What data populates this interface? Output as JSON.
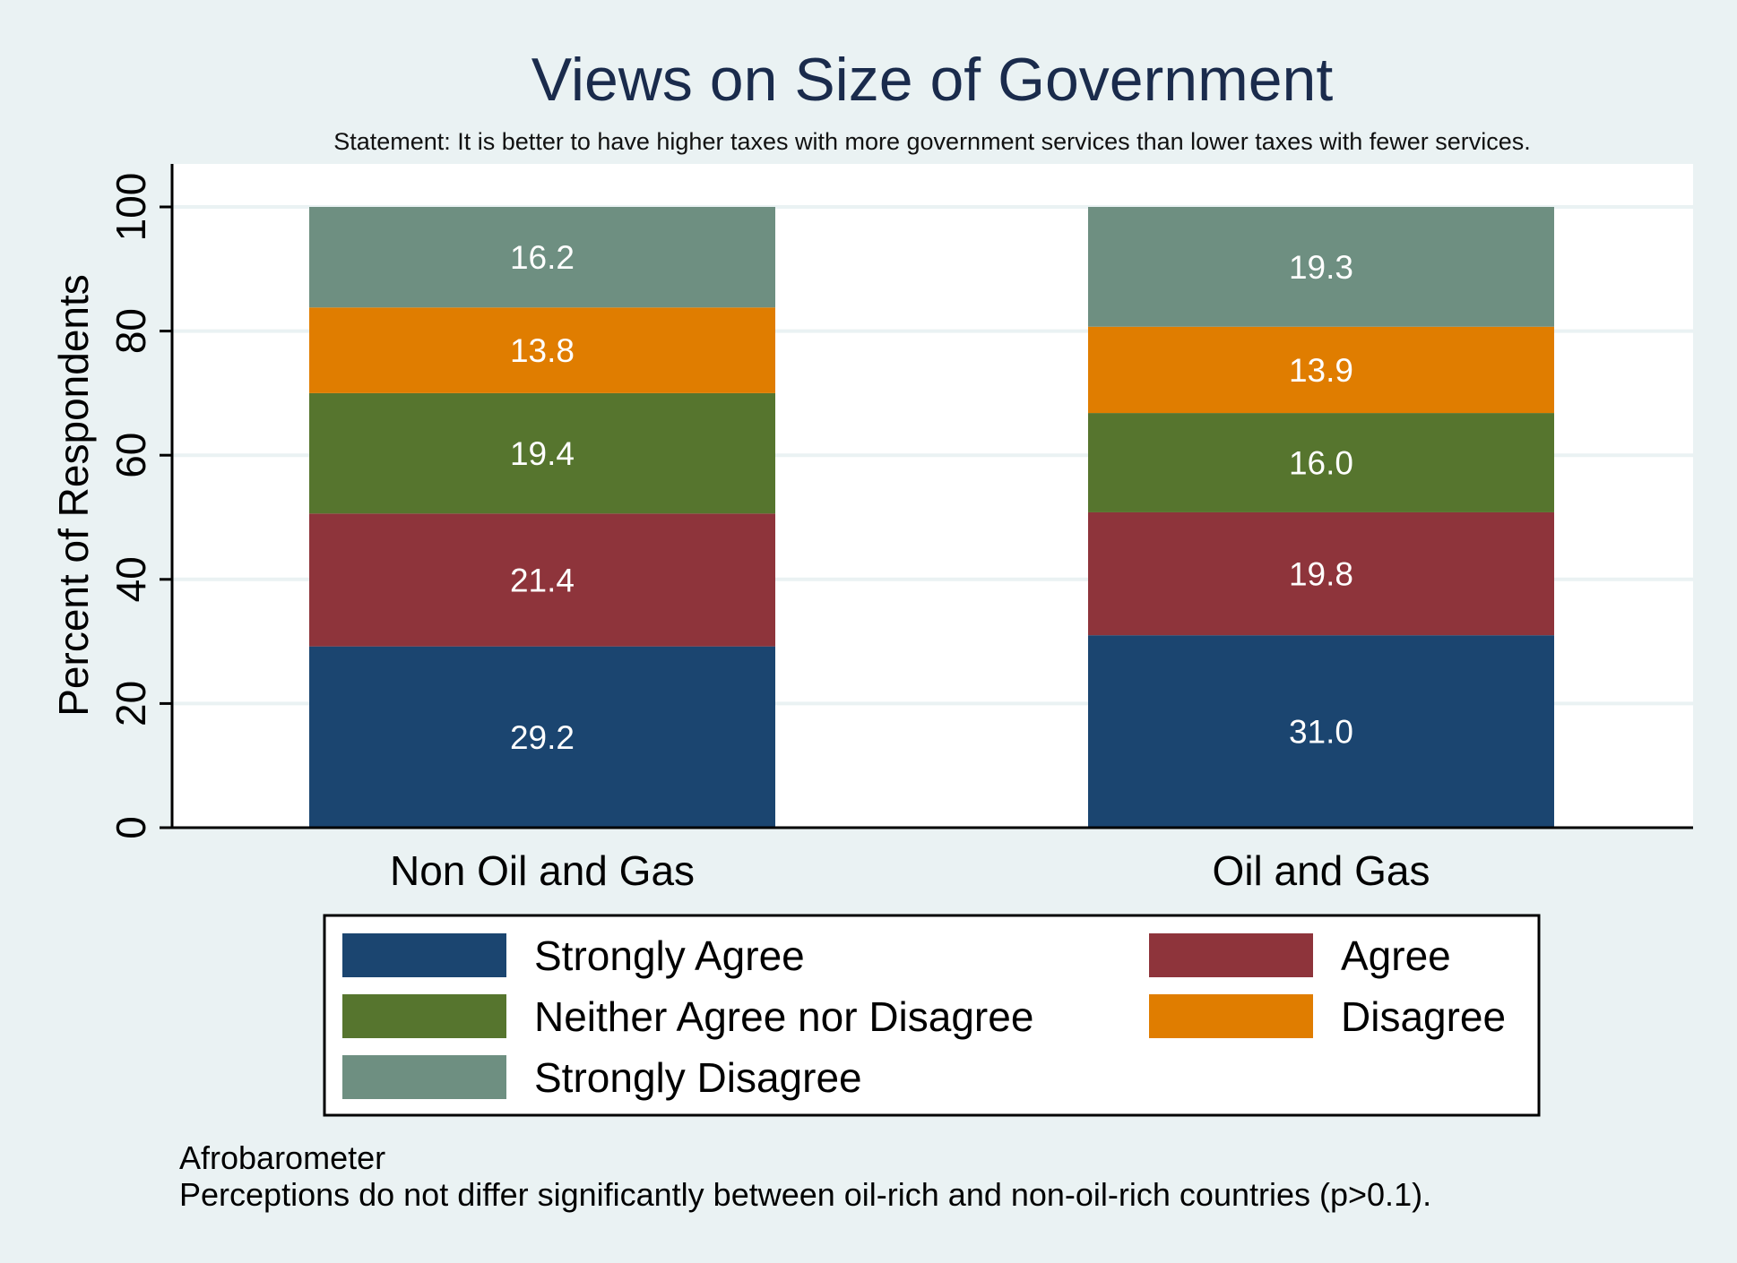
{
  "chart_data": {
    "type": "bar",
    "stacked": true,
    "title": "Views on Size of Government",
    "subtitle": "Statement: It is better to have higher taxes with more government services than lower taxes with fewer services.",
    "ylabel": "Percent of Respondents",
    "xlabel": "",
    "ylim": [
      0,
      100
    ],
    "yticks": [
      0,
      20,
      40,
      60,
      80,
      100
    ],
    "grid": true,
    "categories": [
      "Non Oil and Gas",
      "Oil and Gas"
    ],
    "series": [
      {
        "name": "Strongly Agree",
        "color": "#1b4570",
        "values": [
          29.2,
          31.0
        ],
        "labels": [
          "29.2",
          "31.0"
        ]
      },
      {
        "name": "Agree",
        "color": "#8e343b",
        "values": [
          21.4,
          19.8
        ],
        "labels": [
          "21.4",
          "19.8"
        ]
      },
      {
        "name": "Neither Agree nor Disagree",
        "color": "#56752e",
        "values": [
          19.4,
          16.0
        ],
        "labels": [
          "19.4",
          "16.0"
        ]
      },
      {
        "name": "Disagree",
        "color": "#e07d00",
        "values": [
          13.8,
          13.9
        ],
        "labels": [
          "13.8",
          "13.9"
        ]
      },
      {
        "name": "Strongly Disagree",
        "color": "#6e8f81",
        "values": [
          16.2,
          19.3
        ],
        "labels": [
          "16.2",
          "19.3"
        ]
      }
    ],
    "legend_placement": "bottom",
    "notes": [
      "Afrobarometer",
      "Perceptions do not differ significantly between oil-rich and non-oil-rich countries (p>0.1)."
    ]
  }
}
